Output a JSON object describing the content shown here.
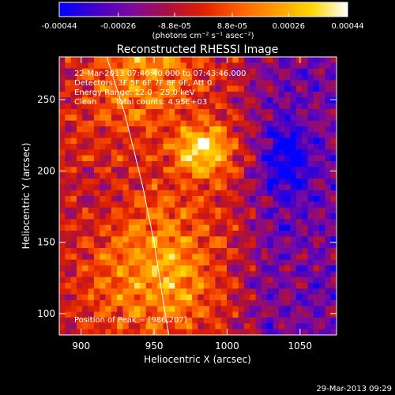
{
  "chart_data": {
    "type": "heatmap",
    "title": "Reconstructed RHESSI Image",
    "xlabel": "Heliocentric X (arcsec)",
    "ylabel": "Heliocentric Y (arcsec)",
    "xlim": [
      885,
      1075
    ],
    "ylim": [
      85,
      280
    ],
    "x_ticks": [
      "900",
      "950",
      "1000",
      "1050"
    ],
    "x_tick_values": [
      900,
      950,
      1000,
      1050
    ],
    "y_ticks": [
      "100",
      "150",
      "200",
      "250"
    ],
    "y_tick_values": [
      100,
      150,
      200,
      250
    ],
    "colorbar": {
      "ticks": [
        "-0.00044",
        "-0.00026",
        "-8.8e-05",
        "8.8e-05",
        "0.00026",
        "0.00044"
      ],
      "tick_values": [
        -0.00044,
        -0.00026,
        -8.8e-05,
        8.8e-05,
        0.00026,
        0.00044
      ],
      "range": [
        -0.00044,
        0.00044
      ],
      "label": "(photons cm⁻² s⁻¹ asec⁻²)",
      "colormap": [
        "#0000ff",
        "#4400c8",
        "#7a0aa0",
        "#aa1040",
        "#e02000",
        "#ff6000",
        "#ff9c00",
        "#ffd600",
        "#ffffff"
      ]
    },
    "annotations": [
      "22-Mar-2013 07:40:40.000 to 07:43:46.000",
      "Detectors: 3F 5F 6F 7F 8F 9F, Att 0",
      "Energy Range: 12.0 - 25.0 keV",
      "Clean",
      "Total counts: 4.95E+03"
    ],
    "peak": {
      "label": "Position of Peak = [986,207]",
      "x": 986,
      "y": 207
    },
    "limb_curve": [
      [
        916,
        285
      ],
      [
        930,
        240
      ],
      [
        942,
        190
      ],
      [
        950,
        150
      ],
      [
        956,
        110
      ],
      [
        960,
        85
      ]
    ],
    "grid": false
  },
  "footer": {
    "date": "29-Mar-2013 09:29"
  }
}
